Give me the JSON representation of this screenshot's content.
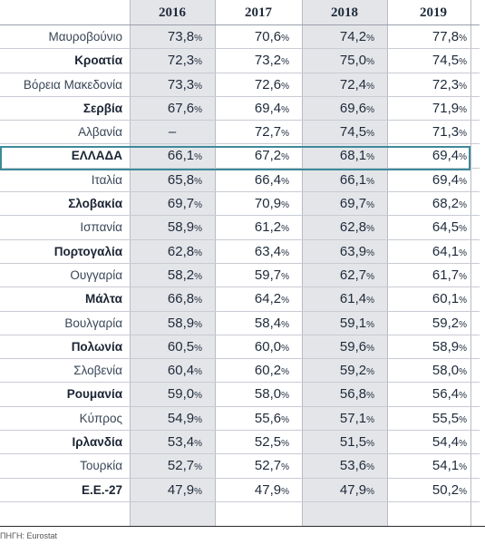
{
  "table": {
    "columns": [
      "2016",
      "2017",
      "2018",
      "2019"
    ],
    "highlight_row": "ΕΛΛΑΔΑ",
    "rows": [
      {
        "name": "Μαυροβούνιο",
        "bold": false,
        "values": [
          "73,8",
          "70,6",
          "74,2",
          "77,8"
        ]
      },
      {
        "name": "Κροατία",
        "bold": true,
        "values": [
          "72,3",
          "73,2",
          "75,0",
          "74,5"
        ]
      },
      {
        "name": "Βόρεια Μακεδονία",
        "bold": false,
        "values": [
          "73,3",
          "72,6",
          "72,4",
          "72,3"
        ]
      },
      {
        "name": "Σερβία",
        "bold": true,
        "values": [
          "67,6",
          "69,4",
          "69,6",
          "71,9"
        ]
      },
      {
        "name": "Αλβανία",
        "bold": false,
        "values": [
          "–",
          "72,7",
          "74,5",
          "71,3"
        ]
      },
      {
        "name": "ΕΛΛΑΔΑ",
        "bold": true,
        "values": [
          "66,1",
          "67,2",
          "68,1",
          "69,4"
        ]
      },
      {
        "name": "Ιταλία",
        "bold": false,
        "values": [
          "65,8",
          "66,4",
          "66,1",
          "69,4"
        ]
      },
      {
        "name": "Σλοβακία",
        "bold": true,
        "values": [
          "69,7",
          "70,9",
          "69,7",
          "68,2"
        ]
      },
      {
        "name": "Ισπανία",
        "bold": false,
        "values": [
          "58,9",
          "61,2",
          "62,8",
          "64,5"
        ]
      },
      {
        "name": "Πορτογαλία",
        "bold": true,
        "values": [
          "62,8",
          "63,4",
          "63,9",
          "64,1"
        ]
      },
      {
        "name": "Ουγγαρία",
        "bold": false,
        "values": [
          "58,2",
          "59,7",
          "62,7",
          "61,7"
        ]
      },
      {
        "name": "Μάλτα",
        "bold": true,
        "values": [
          "66,8",
          "64,2",
          "61,4",
          "60,1"
        ]
      },
      {
        "name": "Βουλγαρία",
        "bold": false,
        "values": [
          "58,9",
          "58,4",
          "59,1",
          "59,2"
        ]
      },
      {
        "name": "Πολωνία",
        "bold": true,
        "values": [
          "60,5",
          "60,0",
          "59,6",
          "58,9"
        ]
      },
      {
        "name": "Σλοβενία",
        "bold": false,
        "values": [
          "60,4",
          "60,2",
          "59,2",
          "58,0"
        ]
      },
      {
        "name": "Ρουμανία",
        "bold": true,
        "values": [
          "59,0",
          "58,0",
          "56,8",
          "56,4"
        ]
      },
      {
        "name": "Κύπρος",
        "bold": false,
        "values": [
          "54,9",
          "55,6",
          "57,1",
          "55,5"
        ]
      },
      {
        "name": "Ιρλανδία",
        "bold": true,
        "values": [
          "53,4",
          "52,5",
          "51,5",
          "54,4"
        ]
      },
      {
        "name": "Τουρκία",
        "bold": false,
        "values": [
          "52,7",
          "52,7",
          "53,6",
          "54,1"
        ]
      },
      {
        "name": "Ε.Ε.-27",
        "bold": true,
        "values": [
          "47,9",
          "47,9",
          "47,9",
          "50,2"
        ]
      }
    ],
    "percent_sign": "%"
  },
  "source": "ΠΗΓΗ: Eurostat",
  "colors": {
    "shade": "#e4e5e9",
    "highlight_border": "#3d8a9a"
  }
}
